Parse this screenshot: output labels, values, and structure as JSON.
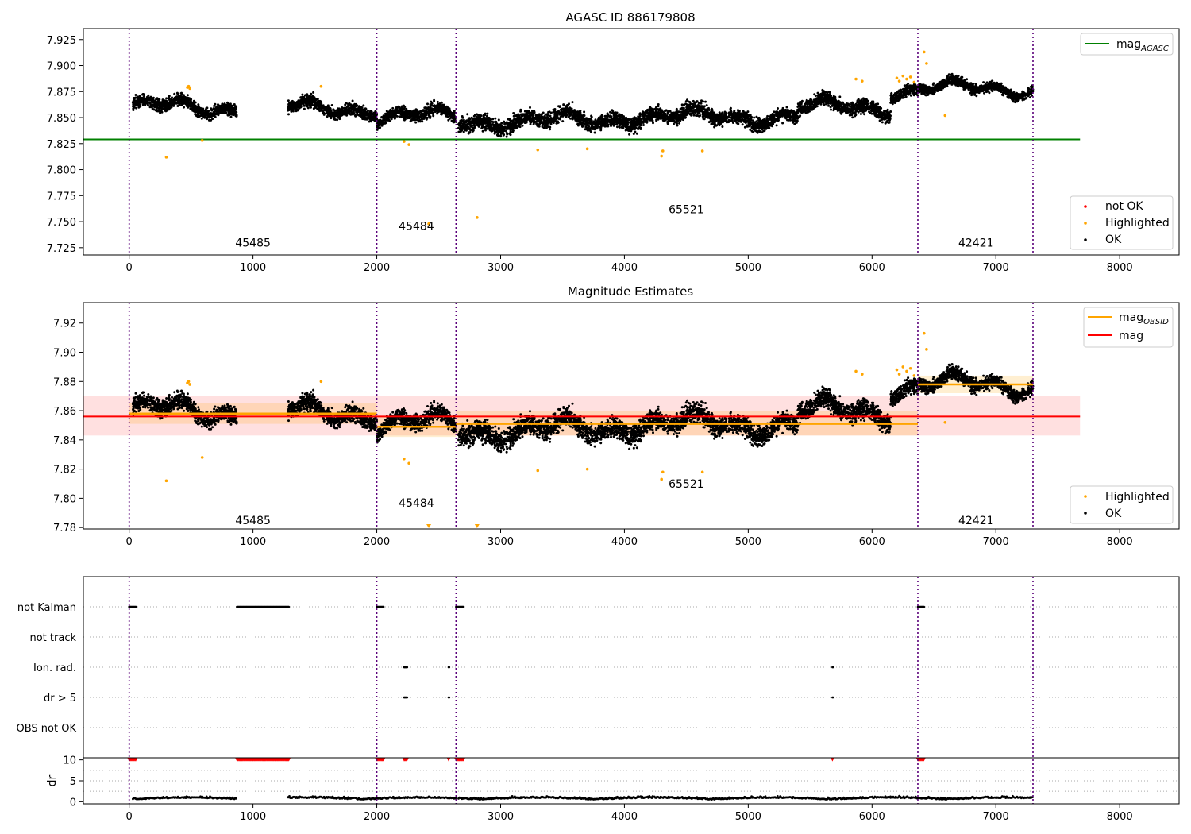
{
  "figure_title": "",
  "chart_data": [
    {
      "type": "scatter",
      "title": "AGASC ID 886179808",
      "xlabel": "",
      "ylabel": "",
      "xlim": [
        -370,
        8480
      ],
      "ylim": [
        7.718,
        7.9355
      ],
      "x_ticks": [
        0,
        1000,
        2000,
        3000,
        4000,
        5000,
        6000,
        7000,
        8000
      ],
      "y_ticks": [
        7.725,
        7.75,
        7.775,
        7.8,
        7.825,
        7.85,
        7.875,
        7.9,
        7.925
      ],
      "y_tick_labels": [
        "7.725",
        "7.750",
        "7.775",
        "7.800",
        "7.825",
        "7.850",
        "7.875",
        "7.900",
        "7.925"
      ],
      "legend_top": {
        "placement": "top-right",
        "entries": [
          {
            "label": "mag",
            "subscript": "AGASC",
            "color": "#008000"
          }
        ]
      },
      "legend_bottom": {
        "placement": "bottom-right",
        "entries": [
          {
            "label": "not OK",
            "color": "#ff0000"
          },
          {
            "label": "Highlighted",
            "color": "#ffa500"
          },
          {
            "label": "OK",
            "color": "#000000"
          }
        ]
      },
      "hlines": [
        {
          "y": 7.829,
          "x0": -370,
          "x1": 7680,
          "color": "#008000"
        }
      ],
      "vlines": [
        0,
        2000,
        2640,
        6370,
        7300
      ],
      "obsid_labels": [
        {
          "text": "45485",
          "x": 1000,
          "y": 7.73
        },
        {
          "text": "45484",
          "x": 2320,
          "y": 7.746
        },
        {
          "text": "65521",
          "x": 4500,
          "y": 7.762
        },
        {
          "text": "42421",
          "x": 6840,
          "y": 7.73
        }
      ],
      "segments": [
        {
          "x0": 30,
          "x1": 870,
          "base": 7.86,
          "amp": 0.012
        },
        {
          "x0": 1280,
          "x1": 2000,
          "base": 7.859,
          "amp": 0.012
        },
        {
          "x0": 2000,
          "x1": 2640,
          "base": 7.851,
          "amp": 0.012
        },
        {
          "x0": 2660,
          "x1": 3900,
          "base": 7.847,
          "amp": 0.015
        },
        {
          "x0": 3900,
          "x1": 5400,
          "base": 7.851,
          "amp": 0.015
        },
        {
          "x0": 5400,
          "x1": 6150,
          "base": 7.86,
          "amp": 0.014
        },
        {
          "x0": 6150,
          "x1": 6370,
          "base": 7.876,
          "amp": 0.012
        },
        {
          "x0": 6380,
          "x1": 7300,
          "base": 7.878,
          "amp": 0.01
        }
      ],
      "highlighted_points": [
        {
          "x": 300,
          "y": 7.812
        },
        {
          "x": 470,
          "y": 7.879
        },
        {
          "x": 480,
          "y": 7.88
        },
        {
          "x": 490,
          "y": 7.878
        },
        {
          "x": 590,
          "y": 7.828
        },
        {
          "x": 1550,
          "y": 7.88
        },
        {
          "x": 2220,
          "y": 7.827
        },
        {
          "x": 2260,
          "y": 7.824
        },
        {
          "x": 2420,
          "y": 7.748
        },
        {
          "x": 2810,
          "y": 7.754
        },
        {
          "x": 3300,
          "y": 7.819
        },
        {
          "x": 3700,
          "y": 7.82
        },
        {
          "x": 4300,
          "y": 7.813
        },
        {
          "x": 4310,
          "y": 7.818
        },
        {
          "x": 4630,
          "y": 7.818
        },
        {
          "x": 5870,
          "y": 7.887
        },
        {
          "x": 5920,
          "y": 7.885
        },
        {
          "x": 6200,
          "y": 7.888
        },
        {
          "x": 6220,
          "y": 7.885
        },
        {
          "x": 6250,
          "y": 7.89
        },
        {
          "x": 6280,
          "y": 7.887
        },
        {
          "x": 6310,
          "y": 7.889
        },
        {
          "x": 6340,
          "y": 7.884
        },
        {
          "x": 6420,
          "y": 7.913
        },
        {
          "x": 6440,
          "y": 7.902
        },
        {
          "x": 6590,
          "y": 7.852
        }
      ]
    },
    {
      "type": "scatter",
      "title": "Magnitude Estimates",
      "xlabel": "",
      "ylabel": "",
      "xlim": [
        -370,
        8480
      ],
      "ylim": [
        7.779,
        7.934
      ],
      "x_ticks": [
        0,
        1000,
        2000,
        3000,
        4000,
        5000,
        6000,
        7000,
        8000
      ],
      "y_ticks": [
        7.78,
        7.8,
        7.82,
        7.84,
        7.86,
        7.88,
        7.9,
        7.92
      ],
      "y_tick_labels": [
        "7.78",
        "7.80",
        "7.82",
        "7.84",
        "7.86",
        "7.88",
        "7.90",
        "7.92"
      ],
      "legend_top": {
        "placement": "top-right",
        "entries": [
          {
            "label": "mag",
            "subscript": "OBSID",
            "color": "#ffa500"
          },
          {
            "label": "mag",
            "color": "#ff0000"
          }
        ]
      },
      "legend_bottom": {
        "placement": "bottom-right",
        "entries": [
          {
            "label": "Highlighted",
            "color": "#ffa500"
          },
          {
            "label": "OK",
            "color": "#000000"
          }
        ]
      },
      "mag_line": {
        "y": 7.856,
        "band": [
          7.843,
          7.87
        ],
        "x0": -370,
        "x1": 7680,
        "color": "#ff0000"
      },
      "obsid_mags": [
        {
          "x0": 0,
          "x1": 2000,
          "y": 7.858,
          "band": [
            7.851,
            7.865
          ]
        },
        {
          "x0": 2000,
          "x1": 2640,
          "y": 7.849,
          "band": [
            7.842,
            7.856
          ]
        },
        {
          "x0": 2640,
          "x1": 6370,
          "y": 7.851,
          "band": [
            7.843,
            7.86
          ]
        },
        {
          "x0": 6370,
          "x1": 7300,
          "y": 7.878,
          "band": [
            7.872,
            7.884
          ]
        }
      ],
      "vlines": [
        0,
        2000,
        2640,
        6370,
        7300
      ],
      "obsid_labels": [
        {
          "text": "45485",
          "x": 1000,
          "y": 7.785
        },
        {
          "text": "45484",
          "x": 2320,
          "y": 7.797
        },
        {
          "text": "65521",
          "x": 4500,
          "y": 7.81
        },
        {
          "text": "42421",
          "x": 6840,
          "y": 7.785
        }
      ],
      "clipped_points": [
        {
          "x": 2420
        },
        {
          "x": 2810
        }
      ]
    },
    {
      "type": "scatter",
      "title": "",
      "xlabel": "",
      "ylabel": "dr",
      "xlim": [
        -370,
        8480
      ],
      "flag_rows": [
        "not Kalman",
        "not track",
        "Ion. rad.",
        "dr > 5",
        "OBS not OK"
      ],
      "flag_ranges": {
        "not Kalman": [
          [
            0,
            55
          ],
          [
            870,
            1290
          ],
          [
            2000,
            2055
          ],
          [
            2640,
            2700
          ],
          [
            6370,
            6420
          ]
        ],
        "not track": [],
        "Ion. rad.": [
          [
            2220,
            2245
          ],
          [
            2580,
            2585
          ],
          [
            5680,
            5685
          ]
        ],
        "dr > 5": [
          [
            2220,
            2245
          ],
          [
            2580,
            2585
          ],
          [
            5680,
            5685
          ]
        ],
        "OBS not OK": []
      },
      "dr_ylim": [
        -0.5,
        10.5
      ],
      "dr_ticks": [
        0,
        5,
        10
      ],
      "dr_tick_labels": [
        "0",
        "5",
        "10"
      ],
      "dr_clipped_ranges": [
        [
          0,
          55
        ],
        [
          870,
          1290
        ],
        [
          2000,
          2055
        ],
        [
          2220,
          2245
        ],
        [
          2580,
          2585
        ],
        [
          2640,
          2700
        ],
        [
          5680,
          5685
        ],
        [
          6370,
          6420
        ]
      ],
      "x_tick_labels": [
        "0",
        "1000",
        "2000",
        "3000",
        "4000",
        "5000",
        "6000",
        "7000",
        "8000"
      ]
    }
  ]
}
